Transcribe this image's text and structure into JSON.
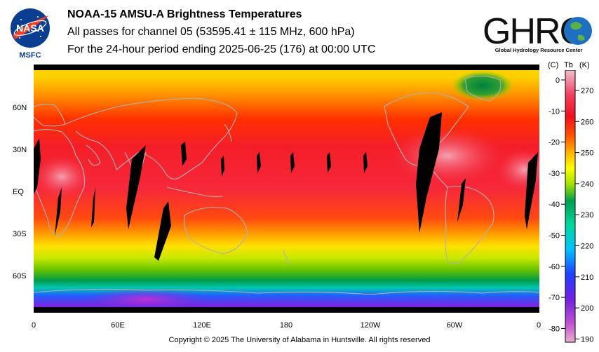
{
  "title": {
    "line1": "NOAA-15 AMSU-A Brightness Temperatures",
    "line2": "All passes for channel 05 (53595.41 ± 115 MHz, 600 hPa)",
    "line3": "For the 24-hour period ending 2025-06-25 (176) at 00:00 UTC"
  },
  "logos": {
    "nasa": {
      "text": "NASA",
      "caption": "MSFC"
    },
    "ghrc": {
      "text": "GHRC",
      "caption": "Global Hydrology Resource Center"
    }
  },
  "map": {
    "lat_labels": [
      "60N",
      "30N",
      "EQ",
      "30S",
      "60S"
    ],
    "lon_labels": [
      "0",
      "60E",
      "120E",
      "180",
      "120W",
      "60W",
      "0"
    ]
  },
  "colorbar": {
    "unit_c": "(C)",
    "unit_tb": "Tb",
    "unit_k": "(K)",
    "celsius_ticks": [
      "0",
      "-10",
      "-20",
      "-30",
      "-40",
      "-50",
      "-60",
      "-70",
      "-80"
    ],
    "kelvin_ticks": [
      "270",
      "260",
      "250",
      "240",
      "230",
      "220",
      "210",
      "200",
      "190"
    ],
    "colors": [
      "#e8b0d0",
      "#c050d0",
      "#7020e0",
      "#2040ff",
      "#00c0ff",
      "#00d8a0",
      "#00a050",
      "#a0e000",
      "#ffff00",
      "#ffb000",
      "#ff5000",
      "#f01020",
      "#f04060",
      "#f0c0d0"
    ]
  },
  "footer": {
    "copyright": "Copyright © 2025 The University of Alabama in Huntsville.  All rights reserved"
  }
}
